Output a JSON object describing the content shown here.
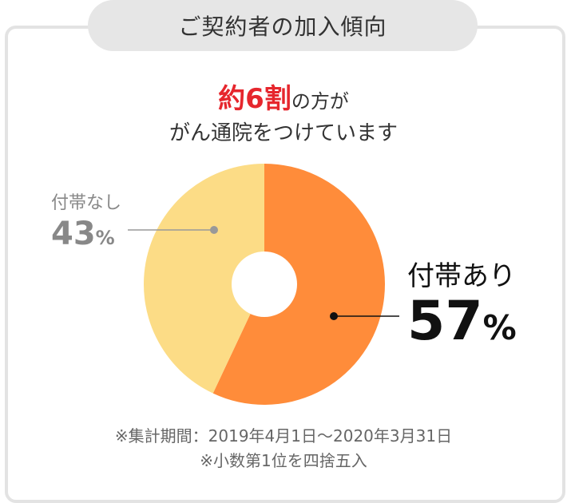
{
  "title": "ご契約者の加入傾向",
  "headline": {
    "highlight": "約6割",
    "line1_rest": "の方が",
    "line2": "がん通院をつけています"
  },
  "chart_data": {
    "type": "pie",
    "slices": [
      {
        "label": "付帯あり",
        "value": 57,
        "unit": "%",
        "color": "#ff8c3a"
      },
      {
        "label": "付帯なし",
        "value": 43,
        "unit": "%",
        "color": "#fcdc86"
      }
    ]
  },
  "notes": {
    "period": "※集計期間：2019年4月1日〜2020年3月31日",
    "rounding": "※小数第1位を四捨五入"
  }
}
